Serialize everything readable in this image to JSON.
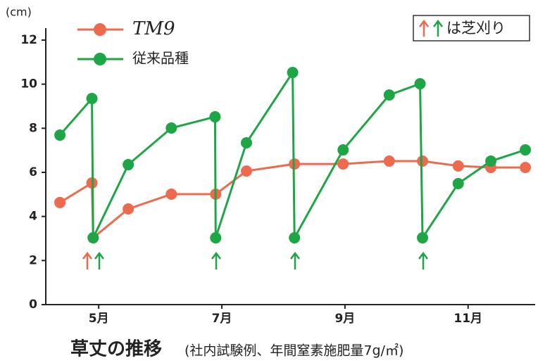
{
  "chart_data": {
    "type": "line",
    "title": "草丈の推移",
    "subtitle": "(社内試験例、年間窒素施肥量7g/㎡)",
    "y_label": "(cm)",
    "annotation": "は芝刈り",
    "xlim": [
      4.14,
      12.09
    ],
    "xticks": [
      {
        "value": 5,
        "label": "5月"
      },
      {
        "value": 7,
        "label": "7月"
      },
      {
        "value": 9,
        "label": "9月"
      },
      {
        "value": 11,
        "label": "11月"
      }
    ],
    "ylim": [
      0,
      12
    ],
    "yticks": [
      0,
      2,
      4,
      6,
      8,
      10,
      12
    ],
    "legend": "top-left",
    "series": [
      {
        "name": "TM9",
        "color": "#ee6a4f",
        "x": [
          4.37,
          4.89,
          4.91,
          5.48,
          6.18,
          6.9,
          7.4,
          8.18,
          8.97,
          9.72,
          10.26,
          10.84,
          11.37,
          11.93
        ],
        "values": [
          4.63,
          5.52,
          3.03,
          4.34,
          5.01,
          5.01,
          6.06,
          6.38,
          6.38,
          6.51,
          6.51,
          6.29,
          6.22,
          6.22
        ]
      },
      {
        "name": "従来品種",
        "color": "#1ea646",
        "x": [
          4.37,
          4.89,
          4.91,
          5.48,
          6.18,
          6.89,
          6.9,
          7.4,
          8.15,
          8.18,
          8.97,
          9.72,
          10.22,
          10.26,
          10.84,
          11.37,
          11.93
        ],
        "values": [
          7.69,
          9.35,
          3.03,
          6.35,
          8.01,
          8.52,
          3.03,
          7.34,
          10.53,
          3.03,
          7.02,
          9.51,
          10.02,
          3.03,
          5.49,
          6.51,
          7.02
        ]
      }
    ]
  }
}
